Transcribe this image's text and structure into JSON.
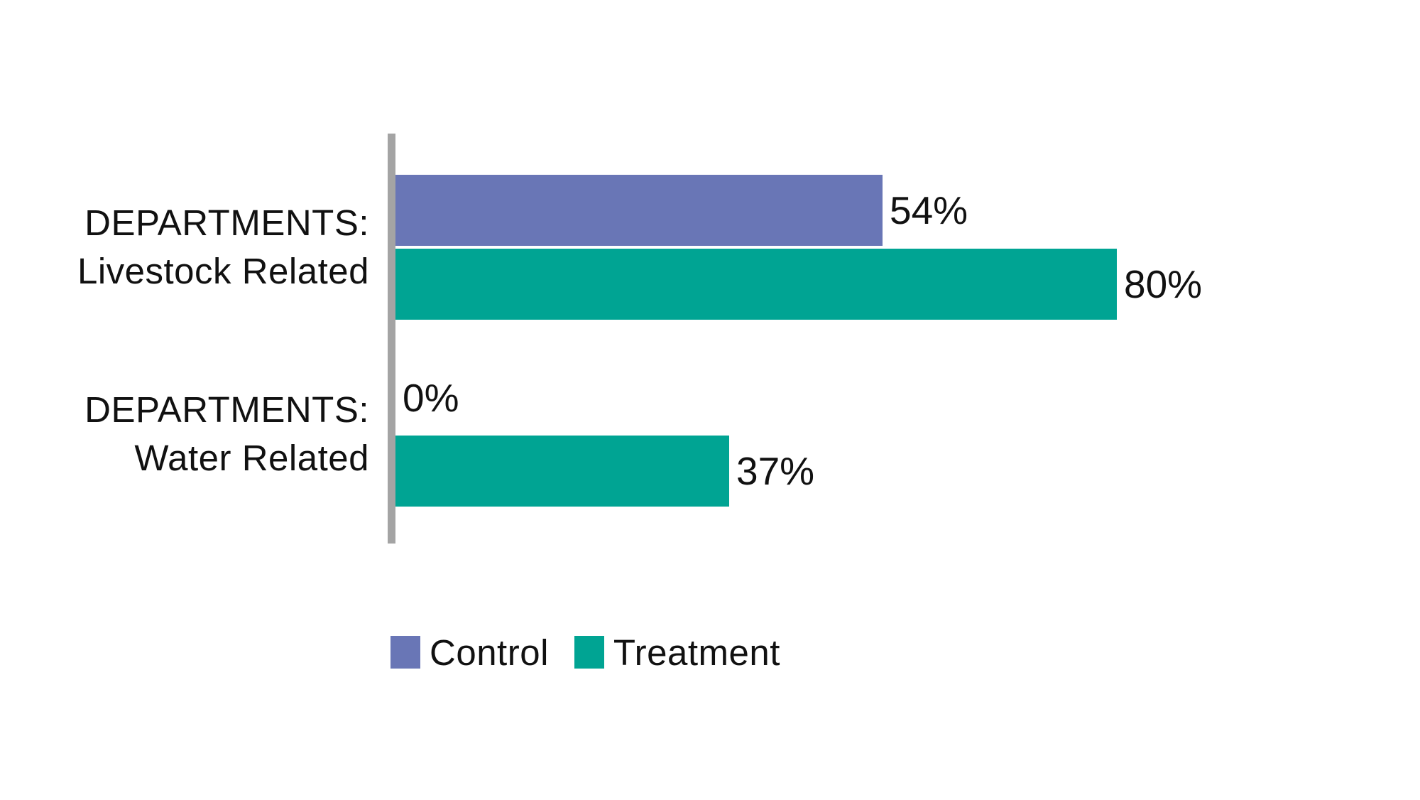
{
  "chart_data": {
    "type": "bar",
    "orientation": "horizontal",
    "title": "",
    "xlabel": "",
    "ylabel": "",
    "unit": "percent",
    "xlim": [
      0,
      100
    ],
    "grid": false,
    "background": "#FFFFFF",
    "axis_color": "#A4A4A4",
    "text_color": "#111111",
    "categories": [
      {
        "line1": "DEPARTMENTS:",
        "line2": "Livestock Related"
      },
      {
        "line1": "DEPARTMENTS:",
        "line2": "Water Related"
      }
    ],
    "series": [
      {
        "name": "Control",
        "color": "#6976B6",
        "values": [
          54,
          0
        ],
        "labels": [
          "54%",
          "0%"
        ]
      },
      {
        "name": "Treatment",
        "color": "#00A493",
        "values": [
          80,
          37
        ],
        "labels": [
          "80%",
          "37%"
        ]
      }
    ],
    "legend": {
      "position": "bottom",
      "items": [
        {
          "label": "Control",
          "color": "#6976B6"
        },
        {
          "label": "Treatment",
          "color": "#00A493"
        }
      ]
    }
  }
}
